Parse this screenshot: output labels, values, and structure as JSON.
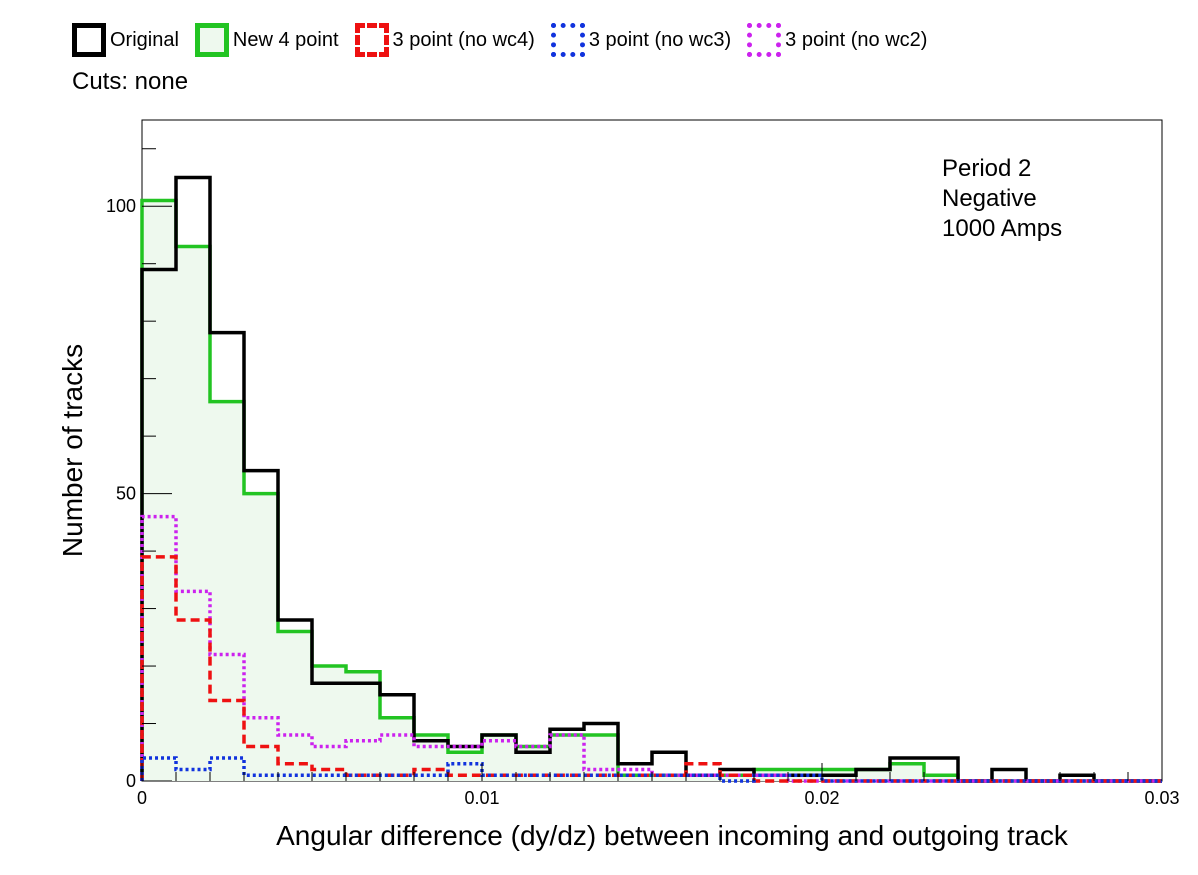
{
  "legend_items": [
    {
      "label": "Original",
      "color": "#000000",
      "style": "solid"
    },
    {
      "label": "New 4 point",
      "color": "#22c422",
      "style": "solid"
    },
    {
      "label": "3 point (no wc4)",
      "color": "#ee1111",
      "style": "dashed"
    },
    {
      "label": "3 point (no wc3)",
      "color": "#1133dd",
      "style": "dotted"
    },
    {
      "label": "3 point (no wc2)",
      "color": "#cc22ee",
      "style": "dotted"
    }
  ],
  "cuts_label": "Cuts: none",
  "chart_data": {
    "type": "histogram",
    "title": "",
    "xlabel": "Angular difference (dy/dz) between incoming and outgoing track",
    "ylabel": "Number of tracks",
    "xlim": [
      0,
      0.03
    ],
    "ylim": [
      0,
      115
    ],
    "bin_width": 0.001,
    "bin_edges_start": 0,
    "xticks": [
      0,
      0.01,
      0.02,
      0.03
    ],
    "xtick_labels": [
      "0",
      "0.01",
      "0.02",
      "0.03"
    ],
    "yticks": [
      0,
      50,
      100
    ],
    "ytick_labels": [
      "0",
      "50",
      "100"
    ],
    "annotation": [
      "Period 2",
      "Negative",
      "1000 Amps"
    ],
    "grid": false,
    "legend_position": "top-left, above plot",
    "series": [
      {
        "name": "Original",
        "color": "#000000",
        "style": "solid",
        "fill": "none",
        "values": [
          89,
          105,
          78,
          54,
          28,
          17,
          17,
          15,
          7,
          6,
          8,
          5,
          9,
          10,
          3,
          5,
          1,
          2,
          1,
          1,
          1,
          2,
          4,
          4,
          0,
          2,
          0,
          1,
          0,
          0
        ]
      },
      {
        "name": "New 4 point",
        "color": "#22c422",
        "style": "solid",
        "fill": "#eef9ee",
        "values": [
          101,
          93,
          66,
          50,
          26,
          20,
          19,
          11,
          8,
          5,
          8,
          6,
          8,
          8,
          1,
          1,
          1,
          1,
          2,
          2,
          2,
          2,
          3,
          1,
          0,
          0,
          0,
          0,
          0,
          0
        ]
      },
      {
        "name": "3 point (no wc4)",
        "color": "#ee1111",
        "style": "dashed",
        "fill": "none",
        "values": [
          39,
          28,
          14,
          6,
          3,
          2,
          1,
          1,
          2,
          1,
          1,
          1,
          1,
          1,
          1,
          1,
          3,
          1,
          0,
          0,
          0,
          0,
          0,
          0,
          0,
          0,
          0,
          0,
          0,
          0
        ]
      },
      {
        "name": "3 point (no wc3)",
        "color": "#1133dd",
        "style": "dotted",
        "fill": "none",
        "values": [
          4,
          2,
          4,
          1,
          1,
          1,
          1,
          1,
          1,
          3,
          1,
          1,
          1,
          1,
          1,
          1,
          1,
          0,
          1,
          1,
          0,
          0,
          0,
          0,
          0,
          0,
          0,
          0,
          0,
          0
        ]
      },
      {
        "name": "3 point (no wc2)",
        "color": "#cc22ee",
        "style": "dotted",
        "fill": "none",
        "values": [
          46,
          33,
          22,
          11,
          8,
          6,
          7,
          8,
          6,
          6,
          7,
          6,
          8,
          2,
          2,
          1,
          1,
          1,
          1,
          0,
          0,
          0,
          0,
          0,
          0,
          0,
          0,
          0,
          0,
          0
        ]
      }
    ]
  }
}
